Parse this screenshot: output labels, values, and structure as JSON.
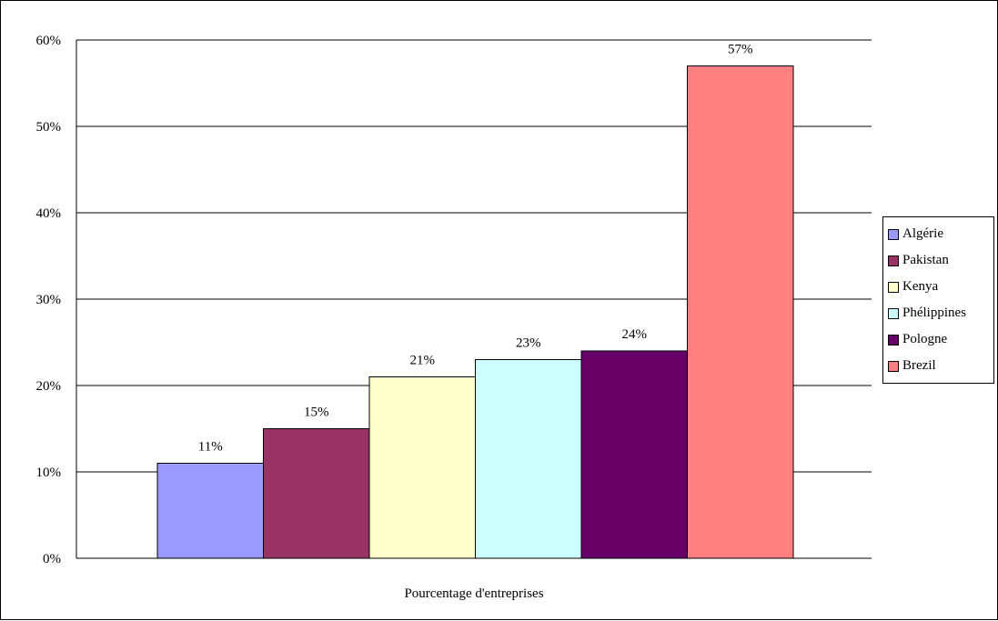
{
  "chart_data": {
    "type": "bar",
    "title": "",
    "xlabel": "Pourcentage d'entreprises",
    "ylabel": "",
    "ylim": [
      0,
      60
    ],
    "yticks": [
      "0%",
      "10%",
      "20%",
      "30%",
      "40%",
      "50%",
      "60%"
    ],
    "grid": true,
    "legend_position": "right",
    "series": [
      {
        "name": "Algérie",
        "value": 11,
        "label": "11%",
        "color": "#9999FF"
      },
      {
        "name": "Pakistan",
        "value": 15,
        "label": "15%",
        "color": "#993366"
      },
      {
        "name": "Kenya",
        "value": 21,
        "label": "21%",
        "color": "#FFFFCC"
      },
      {
        "name": "Phélippines",
        "value": 23,
        "label": "23%",
        "color": "#CCFFFF"
      },
      {
        "name": "Pologne",
        "value": 24,
        "label": "24%",
        "color": "#660066"
      },
      {
        "name": "Brezil",
        "value": 57,
        "label": "57%",
        "color": "#FF8080"
      }
    ]
  }
}
